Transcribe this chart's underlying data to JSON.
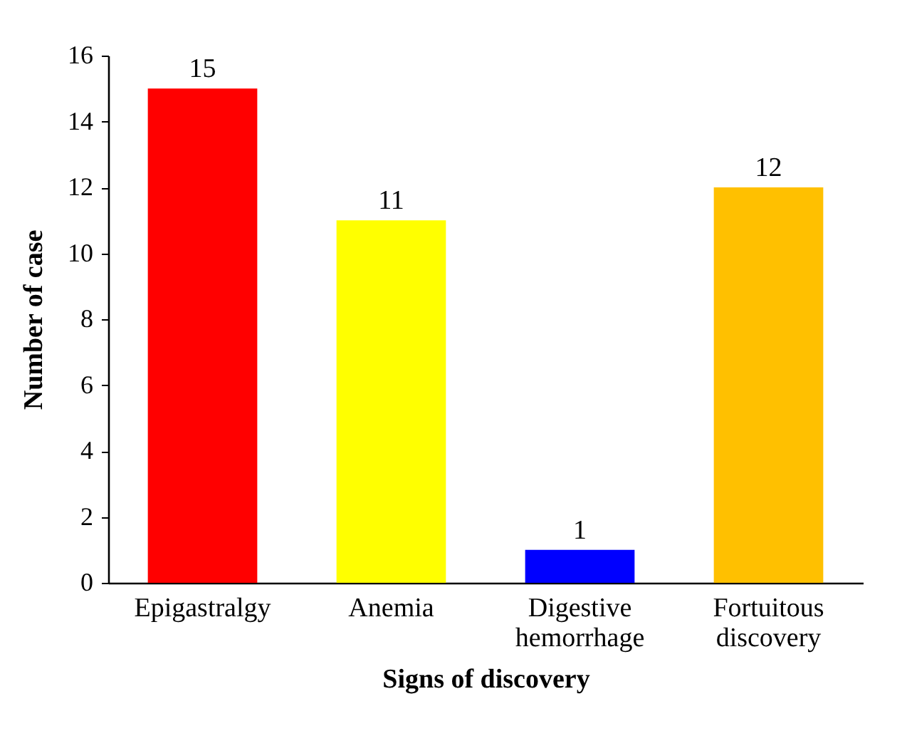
{
  "chart_data": {
    "type": "bar",
    "xlabel": "Signs of discovery",
    "ylabel": "Number of case",
    "categories": [
      "Epigastralgy",
      "Anemia",
      "Digestive hemorrhage",
      "Fortuitous discovery"
    ],
    "values": [
      15,
      11,
      1,
      12
    ],
    "colors": [
      "#ff0000",
      "#ffff00",
      "#0000ff",
      "#ffc000"
    ],
    "ylim": [
      0,
      16
    ],
    "yticks": [
      0,
      2,
      4,
      6,
      8,
      10,
      12,
      14,
      16
    ],
    "grid": false,
    "data_labels": true
  }
}
